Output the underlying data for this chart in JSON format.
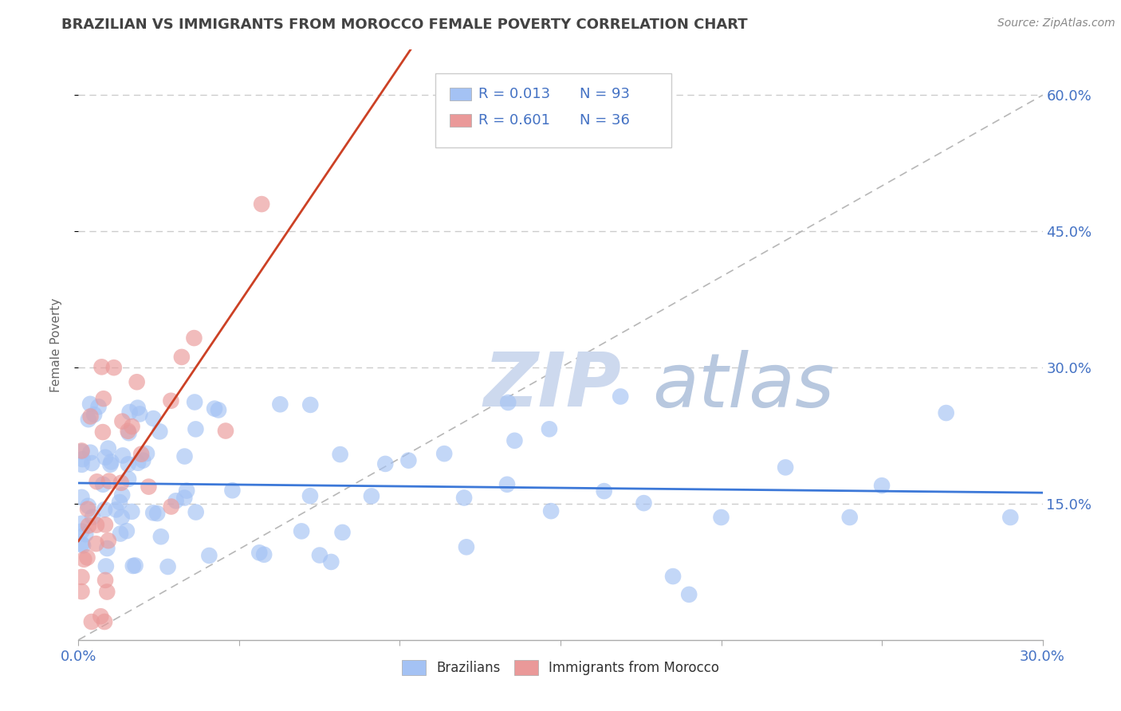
{
  "title": "BRAZILIAN VS IMMIGRANTS FROM MOROCCO FEMALE POVERTY CORRELATION CHART",
  "source": "Source: ZipAtlas.com",
  "legend_blue_r": "R = 0.013",
  "legend_blue_n": "N = 93",
  "legend_pink_r": "R = 0.601",
  "legend_pink_n": "N = 36",
  "blue_color": "#a4c2f4",
  "pink_color": "#ea9999",
  "blue_line_color": "#3c78d8",
  "pink_line_color": "#cc4125",
  "ref_line_color": "#b7b7b7",
  "title_color": "#434343",
  "axis_label_color": "#4472c4",
  "legend_text_color": "#4472c4",
  "watermark_zip_color": "#c9d9f0",
  "watermark_atlas_color": "#b0c4de",
  "ylabel_label": "Female Poverty",
  "xlim": [
    0.0,
    0.3
  ],
  "ylim": [
    0.0,
    0.65
  ],
  "yticks": [
    0.15,
    0.3,
    0.45,
    0.6
  ],
  "ytick_labels": [
    "15.0%",
    "30.0%",
    "45.0%",
    "60.0%"
  ],
  "blue_scatter_seed": 12,
  "pink_scatter_seed": 7
}
